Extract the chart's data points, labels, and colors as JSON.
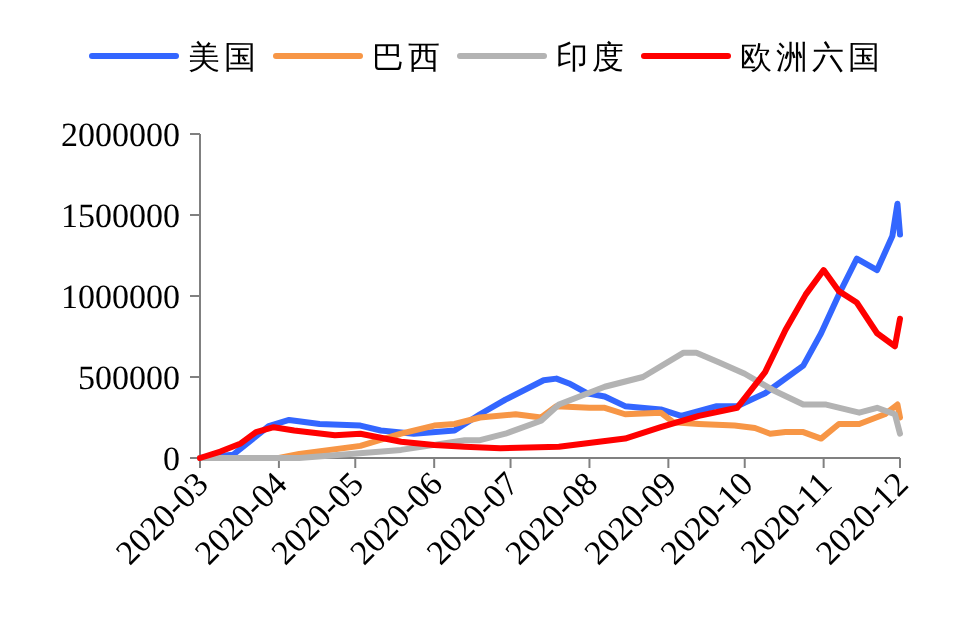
{
  "chart_data": {
    "type": "line",
    "legend": "top",
    "grid": false,
    "marker": "none",
    "line_style": "solid",
    "xlim": [
      "2020-03-01",
      "2020-12-01"
    ],
    "xticks": [
      {
        "value": "2020-03-01",
        "label": "2020-03"
      },
      {
        "value": "2020-04-01",
        "label": "2020-04"
      },
      {
        "value": "2020-05-01",
        "label": "2020-05"
      },
      {
        "value": "2020-06-01",
        "label": "2020-06"
      },
      {
        "value": "2020-07-01",
        "label": "2020-07"
      },
      {
        "value": "2020-08-01",
        "label": "2020-08"
      },
      {
        "value": "2020-09-01",
        "label": "2020-09"
      },
      {
        "value": "2020-10-01",
        "label": "2020-10"
      },
      {
        "value": "2020-11-01",
        "label": "2020-11"
      },
      {
        "value": "2020-12-01",
        "label": "2020-12"
      }
    ],
    "ylim": [
      0,
      2000000
    ],
    "yticks": [
      0,
      500000,
      1000000,
      1500000,
      2000000
    ],
    "series": [
      {
        "name": "美国",
        "color": "#3366ff",
        "x": [
          "2020-03-01",
          "2020-03-14",
          "2020-03-28",
          "2020-04-05",
          "2020-04-17",
          "2020-05-03",
          "2020-05-11",
          "2020-05-24",
          "2020-06-09",
          "2020-06-19",
          "2020-06-29",
          "2020-07-14",
          "2020-07-19",
          "2020-07-24",
          "2020-07-31",
          "2020-08-07",
          "2020-08-15",
          "2020-08-29",
          "2020-09-06",
          "2020-09-20",
          "2020-09-28",
          "2020-10-09",
          "2020-10-24",
          "2020-10-31",
          "2020-11-07",
          "2020-11-14",
          "2020-11-22",
          "2020-11-28",
          "2020-11-30",
          "2020-12-01"
        ],
        "values": [
          0,
          20000,
          197000,
          235000,
          210000,
          200000,
          170000,
          150000,
          170000,
          270000,
          360000,
          480000,
          490000,
          460000,
          400000,
          380000,
          320000,
          300000,
          260000,
          320000,
          320000,
          400000,
          570000,
          770000,
          1010000,
          1230000,
          1160000,
          1370000,
          1570000,
          1380000
        ]
      },
      {
        "name": "巴西",
        "color": "#f79646",
        "x": [
          "2020-03-01",
          "2020-04-01",
          "2020-04-09",
          "2020-05-03",
          "2020-05-19",
          "2020-06-01",
          "2020-06-09",
          "2020-06-19",
          "2020-07-03",
          "2020-07-13",
          "2020-07-19",
          "2020-08-01",
          "2020-08-07",
          "2020-08-15",
          "2020-08-29",
          "2020-09-03",
          "2020-09-13",
          "2020-09-27",
          "2020-10-05",
          "2020-10-11",
          "2020-10-17",
          "2020-10-24",
          "2020-10-31",
          "2020-11-07",
          "2020-11-15",
          "2020-11-25",
          "2020-11-30",
          "2020-12-01"
        ],
        "values": [
          0,
          0,
          25000,
          75000,
          150000,
          200000,
          210000,
          250000,
          270000,
          250000,
          320000,
          310000,
          310000,
          270000,
          280000,
          220000,
          210000,
          200000,
          185000,
          150000,
          160000,
          160000,
          120000,
          210000,
          210000,
          270000,
          330000,
          250000
        ]
      },
      {
        "name": "印度",
        "color": "#b3b3b3",
        "x": [
          "2020-03-01",
          "2020-04-09",
          "2020-05-19",
          "2020-06-13",
          "2020-06-19",
          "2020-06-29",
          "2020-07-13",
          "2020-07-20",
          "2020-08-07",
          "2020-08-22",
          "2020-09-07",
          "2020-09-12",
          "2020-09-21",
          "2020-10-01",
          "2020-10-12",
          "2020-10-24",
          "2020-11-02",
          "2020-11-15",
          "2020-11-22",
          "2020-11-29",
          "2020-12-01"
        ],
        "values": [
          0,
          0,
          50000,
          110000,
          110000,
          150000,
          230000,
          330000,
          440000,
          500000,
          650000,
          650000,
          590000,
          520000,
          420000,
          330000,
          330000,
          280000,
          310000,
          270000,
          150000
        ]
      },
      {
        "name": "欧洲六国",
        "color": "#ff0000",
        "x": [
          "2020-03-01",
          "2020-03-09",
          "2020-03-17",
          "2020-03-23",
          "2020-03-30",
          "2020-04-07",
          "2020-04-23",
          "2020-05-03",
          "2020-05-19",
          "2020-06-01",
          "2020-06-13",
          "2020-06-27",
          "2020-07-20",
          "2020-08-15",
          "2020-08-29",
          "2020-09-13",
          "2020-09-28",
          "2020-10-09",
          "2020-10-17",
          "2020-10-25",
          "2020-11-01",
          "2020-11-07",
          "2020-11-14",
          "2020-11-22",
          "2020-11-29",
          "2020-12-01"
        ],
        "values": [
          0,
          40000,
          90000,
          160000,
          190000,
          170000,
          140000,
          150000,
          100000,
          80000,
          70000,
          60000,
          70000,
          120000,
          190000,
          260000,
          310000,
          530000,
          790000,
          1010000,
          1160000,
          1030000,
          960000,
          770000,
          690000,
          860000
        ]
      }
    ]
  }
}
